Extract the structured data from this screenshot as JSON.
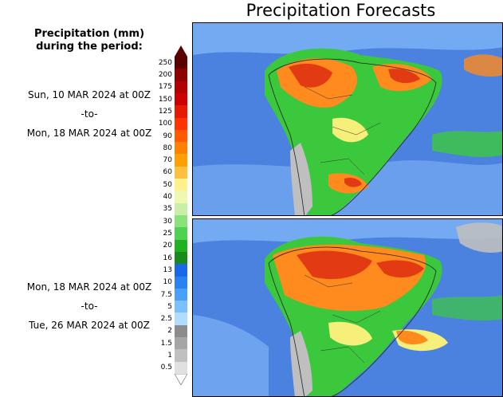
{
  "title": "Precipitation Forecasts",
  "subtitle": {
    "line1": "Precipitation (mm)",
    "line2": "during the period:"
  },
  "period_1": {
    "start": "Sun, 10 MAR 2024 at 00Z",
    "separator": "-to-",
    "end": "Mon, 18 MAR 2024 at 00Z"
  },
  "period_2": {
    "start": "Mon, 18 MAR 2024 at 00Z",
    "separator": "-to-",
    "end": "Tue, 26 MAR 2024 at 00Z"
  },
  "colorbar": {
    "labels": [
      "250",
      "200",
      "175",
      "150",
      "125",
      "100",
      "90",
      "80",
      "70",
      "60",
      "50",
      "40",
      "35",
      "30",
      "25",
      "20",
      "16",
      "13",
      "10",
      "7.5",
      "5",
      "2.5",
      "2",
      "1.5",
      "1",
      "0.5"
    ],
    "colors": [
      "#5a0000",
      "#8c0000",
      "#b20000",
      "#cd0000",
      "#e61a00",
      "#ff3300",
      "#ff5a00",
      "#ff8000",
      "#ffa000",
      "#ffc040",
      "#fff08a",
      "#f0f8b0",
      "#c8eeaa",
      "#8ae27a",
      "#50d250",
      "#20b020",
      "#1a8a1a",
      "#1a68e8",
      "#2a82f0",
      "#4aa0f8",
      "#7ac0ff",
      "#b0dcff",
      "#8c8c8c",
      "#a6a6a6",
      "#c0c0c0",
      "#e0e0e0"
    ]
  },
  "map_colors": {
    "ocean": "#4c82df",
    "ocean_light": "#8ec4ff",
    "dry": "#bfbfbf",
    "green": "#3cc83c",
    "yellow": "#f6f07a",
    "orange": "#ff8a1e",
    "red": "#e23a12"
  }
}
